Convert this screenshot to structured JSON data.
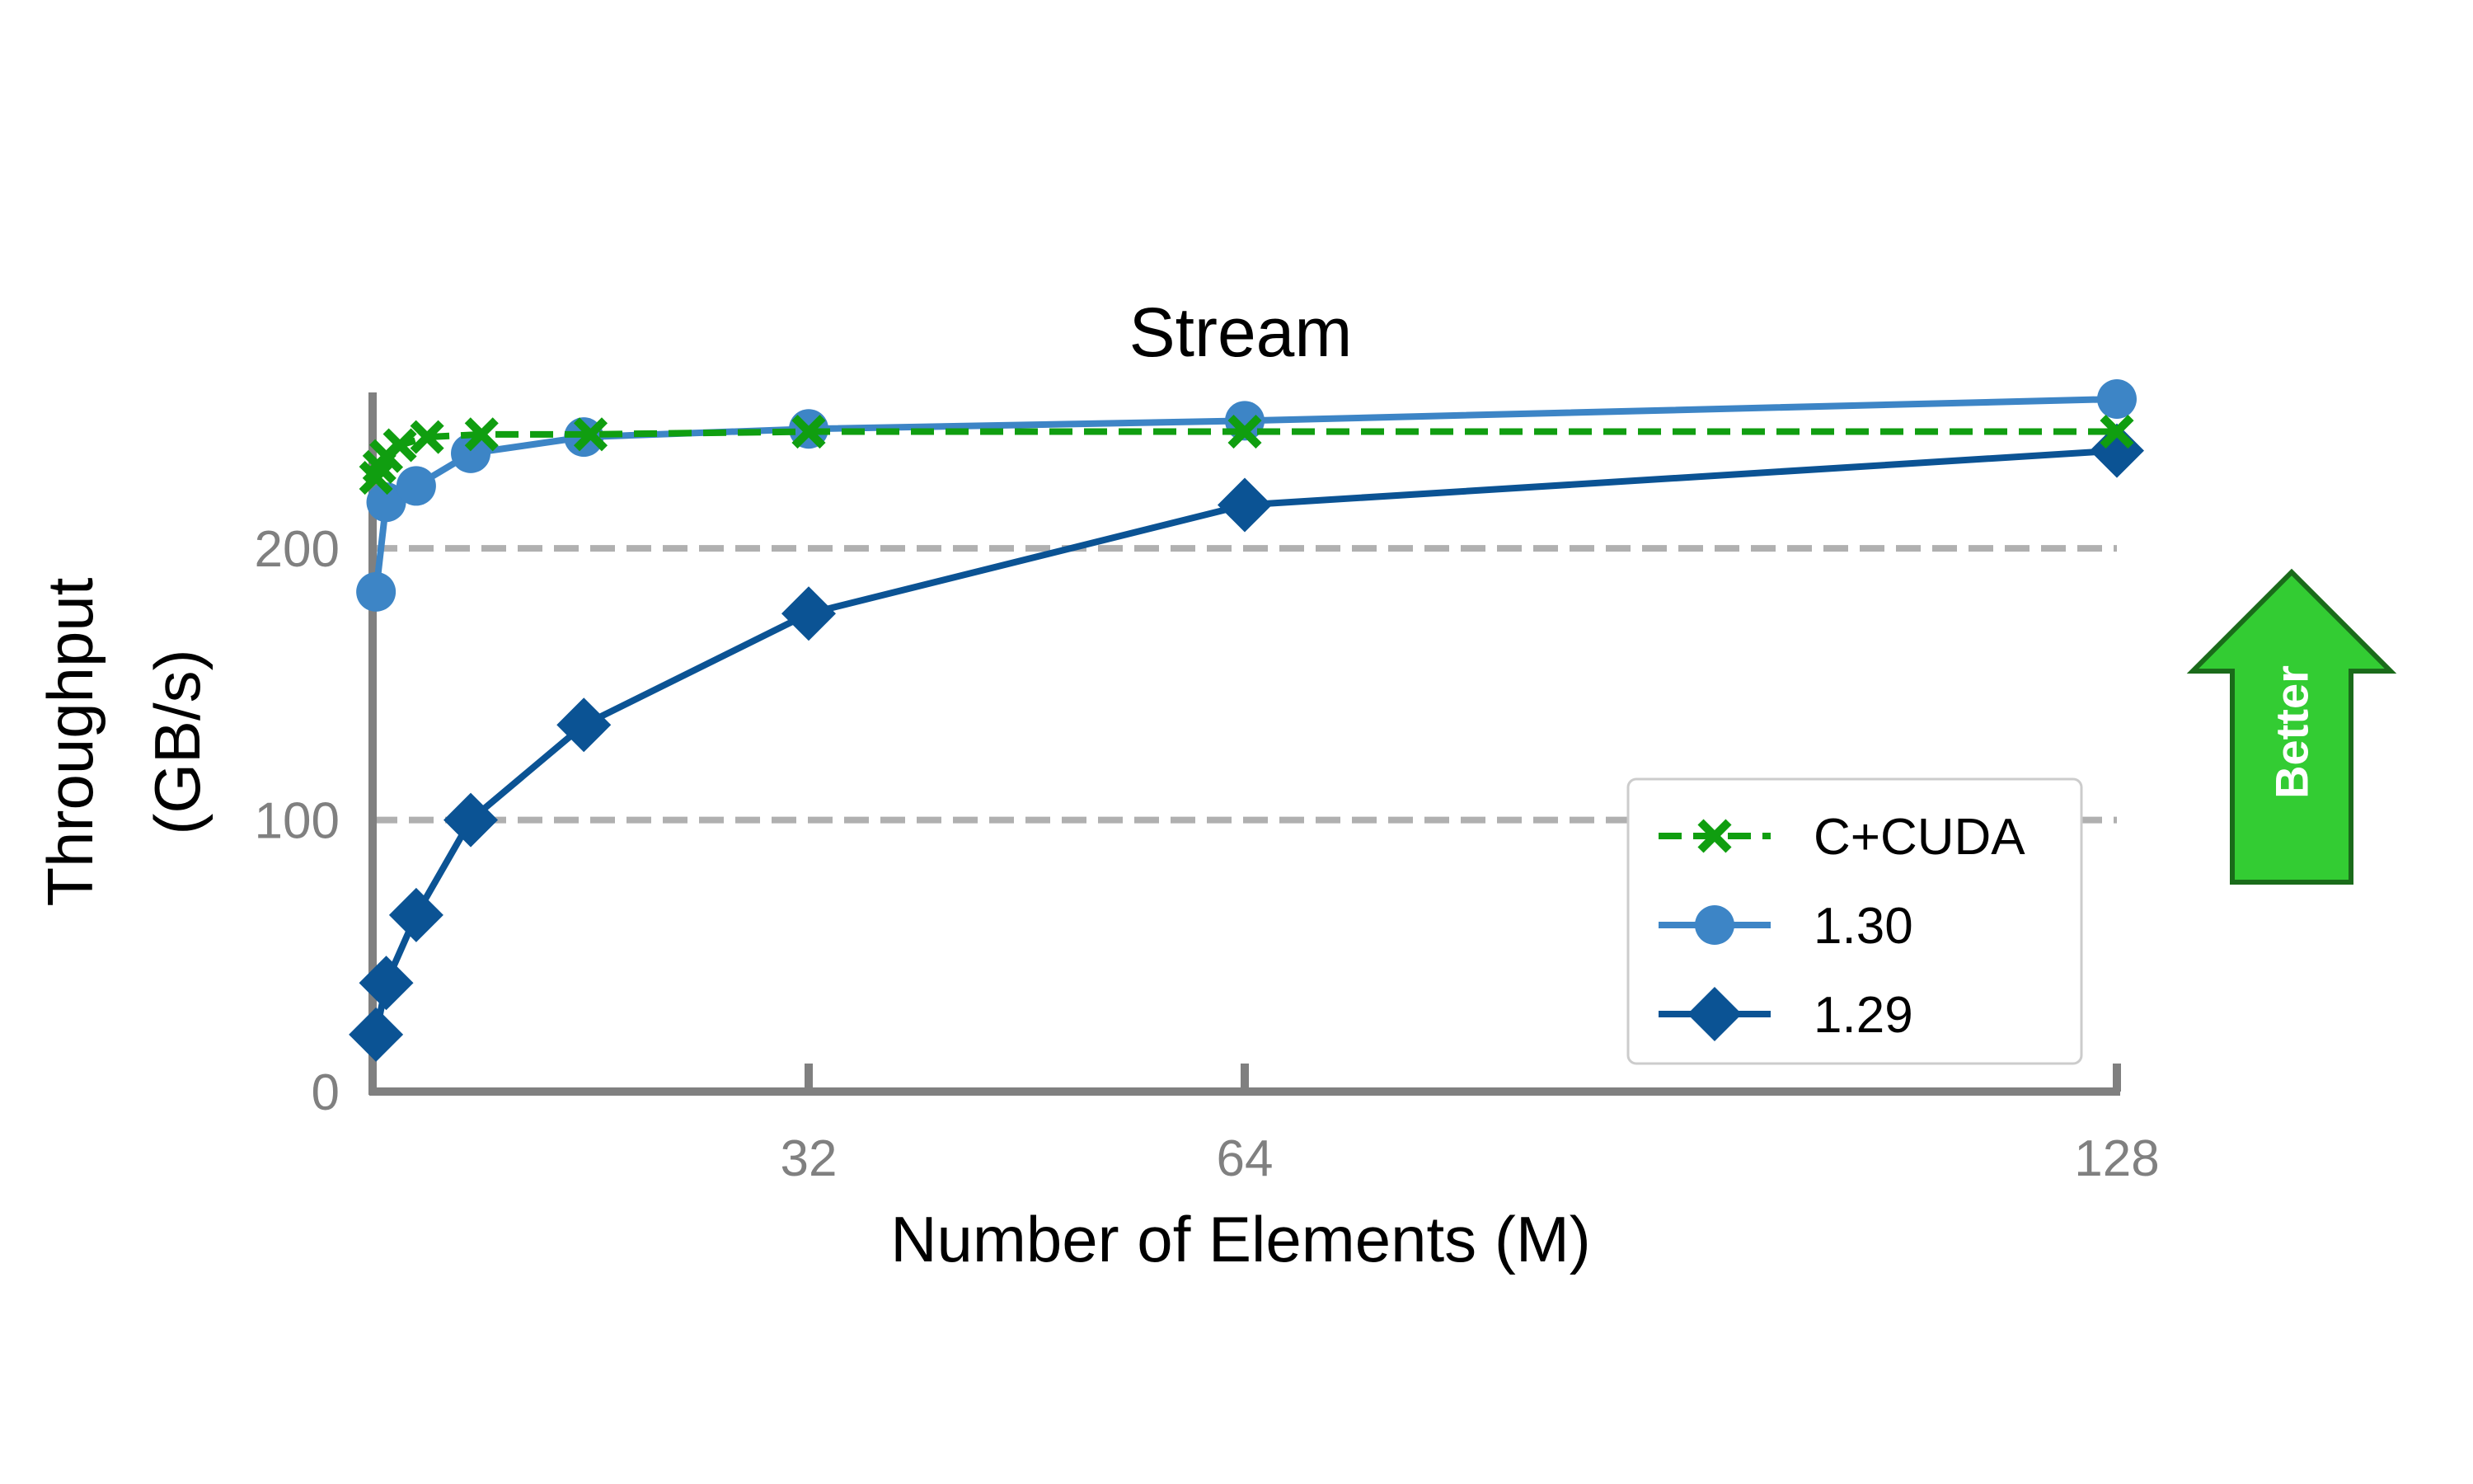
{
  "chart_data": {
    "type": "line",
    "title": "Stream",
    "xlabel": "Number of Elements (M)",
    "ylabel_lines": [
      "Throughput",
      "(GB/s)"
    ],
    "xlim": [
      0,
      128
    ],
    "ylim": [
      0,
      255
    ],
    "xticks": [
      32,
      64,
      128
    ],
    "yticks": [
      0,
      100,
      200
    ],
    "grid": "horizontal dashed at y ticks",
    "legend_placement": "lower-right",
    "series": [
      {
        "name": "C+CUDA",
        "color": "#109e10",
        "marker": "x",
        "line_style": "dashed",
        "x": [
          0.25,
          0.5,
          1,
          2,
          4,
          8,
          16,
          32,
          64,
          128
        ],
        "y": [
          226,
          230,
          234,
          238,
          241,
          242,
          242,
          243,
          243,
          243
        ]
      },
      {
        "name": "1.30",
        "color": "#3d85c6",
        "marker": "circle",
        "line_style": "solid",
        "x": [
          0.25,
          1,
          3.2,
          7.2,
          15.5,
          32,
          64,
          128
        ],
        "y": [
          184,
          217,
          223,
          235,
          241,
          244,
          247,
          255
        ]
      },
      {
        "name": "1.29",
        "color": "#0b5394",
        "marker": "diamond",
        "line_style": "solid",
        "x": [
          0.25,
          1,
          3.2,
          7.2,
          15.5,
          32,
          64,
          128
        ],
        "y": [
          21,
          40,
          65,
          100,
          135,
          176,
          216,
          236
        ]
      }
    ],
    "annotation": {
      "text": "Better",
      "color": "#33cc33",
      "direction": "up"
    }
  }
}
